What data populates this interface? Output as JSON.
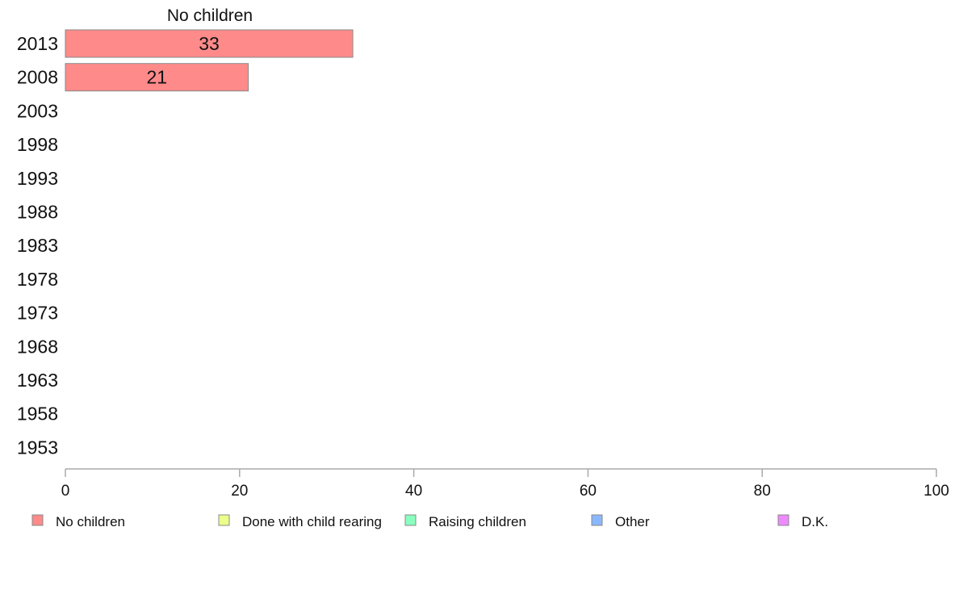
{
  "chart_data": {
    "type": "bar",
    "orientation": "horizontal",
    "stacked": true,
    "title": "",
    "column_title": "No children",
    "xlabel": "",
    "ylabel": "",
    "xlim": [
      0,
      100
    ],
    "x_ticks": [
      "0",
      "20",
      "40",
      "60",
      "80",
      "100"
    ],
    "categories": [
      "2013",
      "2008",
      "2003",
      "1998",
      "1993",
      "1988",
      "1983",
      "1978",
      "1973",
      "1968",
      "1963",
      "1958",
      "1953"
    ],
    "series": [
      {
        "name": "No children",
        "color": "#ff8a8a",
        "values": [
          33,
          21,
          null,
          null,
          null,
          null,
          null,
          null,
          null,
          null,
          null,
          null,
          null
        ]
      }
    ],
    "legend": {
      "placement": "bottom",
      "entries": [
        {
          "name": "No children",
          "color": "#ff8a8a"
        },
        {
          "name": "Done with child rearing",
          "color": "#ecff8a"
        },
        {
          "name": "Raising children",
          "color": "#8affc0"
        },
        {
          "name": "Other",
          "color": "#8ab8ff"
        },
        {
          "name": "D.K.",
          "color": "#ee8aff"
        }
      ]
    },
    "grid": false
  }
}
